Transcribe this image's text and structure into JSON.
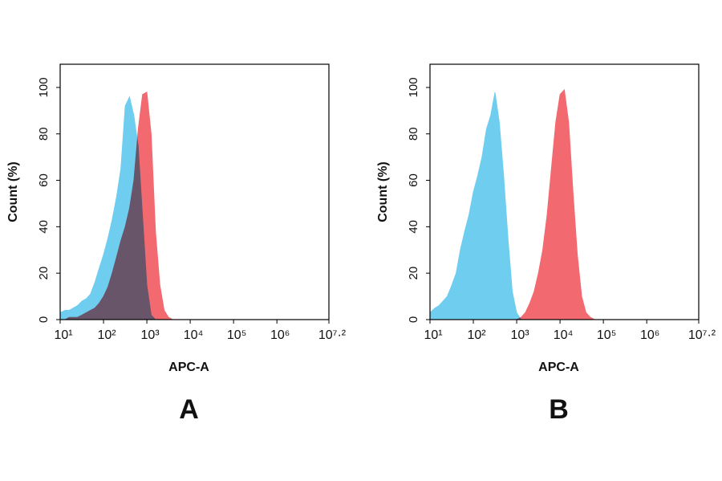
{
  "chart_data": [
    {
      "type": "area",
      "caption": "A",
      "xlabel": "APC-A",
      "ylabel": "Count  (%)",
      "xscale": "log",
      "x": [
        10,
        13,
        16,
        20,
        25,
        32,
        40,
        50,
        63,
        79,
        100,
        126,
        158,
        200,
        251,
        316,
        398,
        501,
        631,
        794,
        1000,
        1259,
        1585,
        1995,
        2512,
        3162,
        3981,
        5012,
        6310,
        7943,
        10000,
        12589,
        15849,
        19953,
        25119,
        31623,
        39811,
        50119,
        63096,
        79433,
        100000
      ],
      "series": [
        {
          "color": "#f26a70",
          "values": [
            0,
            0,
            1,
            1,
            1,
            2,
            3,
            4,
            5,
            7,
            10,
            14,
            20,
            27,
            34,
            40,
            48,
            60,
            82,
            97,
            98,
            80,
            38,
            15,
            4,
            1,
            0,
            0,
            0,
            0,
            0,
            0,
            0,
            0,
            0,
            0,
            0,
            0,
            0,
            0,
            0
          ]
        },
        {
          "color": "#6fcdef",
          "values": [
            3,
            4,
            4,
            5,
            6,
            8,
            9,
            11,
            16,
            22,
            28,
            35,
            43,
            53,
            65,
            92,
            96,
            88,
            75,
            45,
            15,
            2,
            0,
            0,
            0,
            0,
            0,
            0,
            0,
            0,
            0,
            0,
            0,
            0,
            0,
            0,
            0,
            0,
            0,
            0,
            0
          ]
        }
      ],
      "xlim": [
        10,
        15848932
      ],
      "xticks": [
        {
          "value": 10,
          "label": "10¹"
        },
        {
          "value": 100,
          "label": "10²"
        },
        {
          "value": 1000,
          "label": "10³"
        },
        {
          "value": 10000,
          "label": "10⁴"
        },
        {
          "value": 100000,
          "label": "10⁵"
        },
        {
          "value": 1000000,
          "label": "10⁶"
        },
        {
          "value": 15848932,
          "label": "10⁷·²"
        }
      ],
      "ylim": [
        0,
        110
      ],
      "yticks": [
        0,
        20,
        40,
        60,
        80,
        100
      ]
    },
    {
      "type": "area",
      "caption": "B",
      "xlabel": "APC-A",
      "ylabel": "Count  (%)",
      "xscale": "log",
      "x": [
        10,
        13,
        16,
        20,
        25,
        32,
        40,
        50,
        63,
        79,
        100,
        126,
        158,
        200,
        251,
        316,
        398,
        501,
        631,
        794,
        1000,
        1259,
        1585,
        1995,
        2512,
        3162,
        3981,
        5012,
        6310,
        7943,
        10000,
        12589,
        15849,
        19953,
        25119,
        31623,
        39811,
        50119,
        63096,
        79433,
        100000
      ],
      "series": [
        {
          "color": "#f26a70",
          "values": [
            0,
            0,
            0,
            0,
            0,
            0,
            0,
            0,
            0,
            0,
            0,
            0,
            0,
            0,
            0,
            0,
            0,
            0,
            0,
            0,
            0,
            1,
            3,
            7,
            12,
            20,
            30,
            45,
            65,
            85,
            97,
            99,
            85,
            55,
            28,
            10,
            3,
            1,
            0,
            0,
            0
          ]
        },
        {
          "color": "#6fcdef",
          "values": [
            3,
            5,
            6,
            8,
            10,
            15,
            20,
            30,
            38,
            45,
            55,
            62,
            70,
            82,
            88,
            98,
            85,
            62,
            35,
            12,
            3,
            0,
            0,
            0,
            0,
            0,
            0,
            0,
            0,
            0,
            0,
            0,
            0,
            0,
            0,
            0,
            0,
            0,
            0,
            0,
            0
          ]
        }
      ],
      "xlim": [
        10,
        15848932
      ],
      "xticks": [
        {
          "value": 10,
          "label": "10¹"
        },
        {
          "value": 100,
          "label": "10²"
        },
        {
          "value": 1000,
          "label": "10³"
        },
        {
          "value": 10000,
          "label": "10⁴"
        },
        {
          "value": 100000,
          "label": "10⁵"
        },
        {
          "value": 1000000,
          "label": "10⁶"
        },
        {
          "value": 15848932,
          "label": "10⁷·²"
        }
      ],
      "ylim": [
        0,
        110
      ],
      "yticks": [
        0,
        20,
        40,
        60,
        80,
        100
      ]
    }
  ]
}
